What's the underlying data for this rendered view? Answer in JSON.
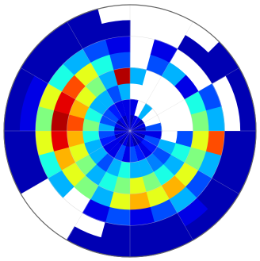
{
  "chart_data": {
    "type": "polar_heatmap",
    "colormap": "jet",
    "clim": [
      0,
      1
    ],
    "grid": true,
    "values": [
      [
        0.05,
        0.1,
        null,
        0.3,
        null,
        null,
        null,
        null
      ],
      [
        0.1,
        null,
        null,
        null,
        0.2,
        0.1,
        null,
        null
      ],
      [
        0.1,
        0.3,
        null,
        null,
        0.3,
        null,
        0.05,
        null
      ],
      [
        0.05,
        null,
        null,
        null,
        0.1,
        null,
        0.05,
        0.05
      ],
      [
        0.1,
        null,
        null,
        null,
        0.4,
        0.2,
        null,
        0.05
      ],
      [
        0.05,
        0.2,
        null,
        null,
        0.5,
        0.3,
        null,
        0.05
      ],
      [
        0.1,
        0.1,
        null,
        0.2,
        0.6,
        0.8,
        0.05,
        0.05
      ],
      [
        0.05,
        0.2,
        0.3,
        0.4,
        0.5,
        0.3,
        0.05,
        0.05
      ],
      [
        0.1,
        0.15,
        0.2,
        0.3,
        0.6,
        0.2,
        0.05,
        0.05
      ],
      [
        0.05,
        0.1,
        0.25,
        0.4,
        0.7,
        0.3,
        0.1,
        0.05
      ],
      [
        0.05,
        0.15,
        0.3,
        0.5,
        0.6,
        0.2,
        0.05,
        0.05
      ],
      [
        0.1,
        0.2,
        0.3,
        0.6,
        0.7,
        0.1,
        0.05,
        0.05
      ],
      [
        0.05,
        0.1,
        0.4,
        0.5,
        0.6,
        0.2,
        0.05,
        0.05
      ],
      [
        0.1,
        0.2,
        0.3,
        0.4,
        0.3,
        0.1,
        null,
        0.05
      ],
      [
        0.05,
        0.1,
        0.2,
        0.3,
        0.5,
        null,
        null,
        null
      ],
      [
        0.1,
        0.1,
        0.3,
        0.5,
        0.6,
        0.3,
        null,
        null
      ],
      [
        0.05,
        0.15,
        0.3,
        0.6,
        0.7,
        0.4,
        0.05,
        0.05
      ],
      [
        0.1,
        0.2,
        0.4,
        0.7,
        0.9,
        0.6,
        0.05,
        0.05
      ],
      [
        0.05,
        0.3,
        0.5,
        0.8,
        0.95,
        0.5,
        0.1,
        0.05
      ],
      [
        0.1,
        0.2,
        0.4,
        0.7,
        0.9,
        0.6,
        0.1,
        0.05
      ],
      [
        0.05,
        0.2,
        0.3,
        0.6,
        0.8,
        0.4,
        0.05,
        0.05
      ],
      [
        0.1,
        0.15,
        0.3,
        0.5,
        0.6,
        0.3,
        0.05,
        0.05
      ],
      [
        0.05,
        0.1,
        0.2,
        0.3,
        0.4,
        0.2,
        0.05,
        0.05
      ],
      [
        0.1,
        0.1,
        0.3,
        0.95,
        0.2,
        0.1,
        0.05,
        null
      ]
    ]
  }
}
